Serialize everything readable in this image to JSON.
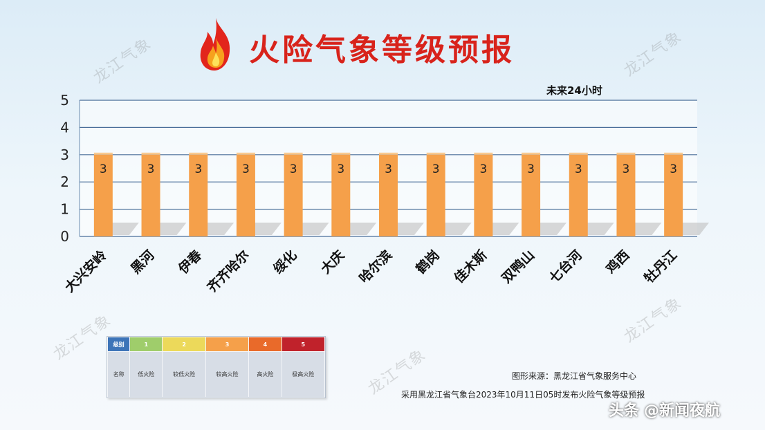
{
  "header": {
    "title": "火险气象等级预报",
    "subtitle": "未来24小时"
  },
  "chart_data": {
    "type": "bar",
    "title": "火险气象等级预报",
    "subtitle": "未来24小时",
    "categories": [
      "大兴安岭",
      "黑河",
      "伊春",
      "齐齐哈尔",
      "绥化",
      "大庆",
      "哈尔滨",
      "鹤岗",
      "佳木斯",
      "双鸭山",
      "七台河",
      "鸡西",
      "牡丹江"
    ],
    "values": [
      3,
      3,
      3,
      3,
      3,
      3,
      3,
      3,
      3,
      3,
      3,
      3,
      3
    ],
    "ylim": [
      0,
      5
    ],
    "yticks": [
      0,
      1,
      2,
      3,
      4,
      5
    ],
    "grid": true,
    "data_labels": true,
    "bar_color": "#f5a04a"
  },
  "legend_table": {
    "header_label": "级别",
    "name_label": "名称",
    "levels": [
      {
        "level": "1",
        "name": "低火险",
        "color": "#9fcd6b"
      },
      {
        "level": "2",
        "name": "较低火险",
        "color": "#ecd95a"
      },
      {
        "level": "3",
        "name": "较高火险",
        "color": "#f5a04a"
      },
      {
        "level": "4",
        "name": "高火险",
        "color": "#e96a2a"
      },
      {
        "level": "5",
        "name": "极高火险",
        "color": "#c0222b"
      }
    ]
  },
  "footer": {
    "source": "图形来源：黑龙江省气象服务中心",
    "note": "采用黑龙江省气象台2023年10月11日05时发布火险气象等级预报"
  },
  "watermark": "龙江气象",
  "brand": {
    "prefix": "头条",
    "handle": "@新闻夜航"
  }
}
